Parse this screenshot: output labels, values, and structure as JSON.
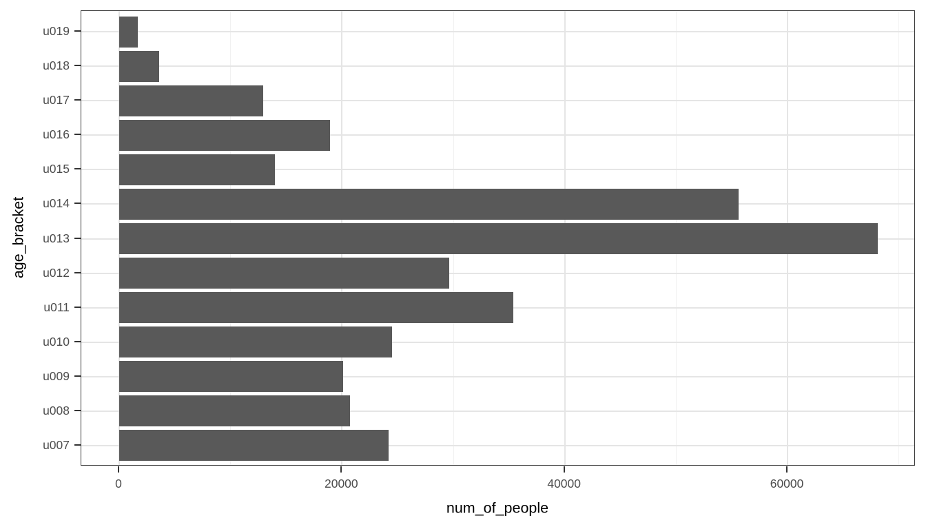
{
  "figure": {
    "background_color": "#ffffff"
  },
  "chart_data": {
    "type": "bar",
    "orientation": "horizontal",
    "title": "",
    "xlabel": "num_of_people",
    "ylabel": "age_bracket",
    "categories_top_to_bottom": [
      "u019",
      "u018",
      "u017",
      "u016",
      "u015",
      "u014",
      "u013",
      "u012",
      "u011",
      "u010",
      "u009",
      "u008",
      "u007"
    ],
    "values": [
      1700,
      3600,
      12900,
      18900,
      14000,
      55600,
      68100,
      29600,
      35400,
      24500,
      20100,
      20700,
      24200
    ],
    "x_tick_values": [
      0,
      20000,
      40000,
      60000
    ],
    "x_tick_labels": [
      "0",
      "20000",
      "40000",
      "60000"
    ],
    "x_minor_gridline_values": [
      10000,
      30000,
      50000,
      70000
    ],
    "xlim": [
      -3400,
      71500
    ],
    "bar_fill_color": "#595959",
    "grid_major_color": "#e5e5e5",
    "grid_minor_color": "#f1f1f1",
    "panel_border_color": "#333333",
    "tick_label_color": "#4d4d4d",
    "axis_title_color": "#000000",
    "grid": true,
    "legend": false,
    "bar_width_fraction": 0.9
  }
}
